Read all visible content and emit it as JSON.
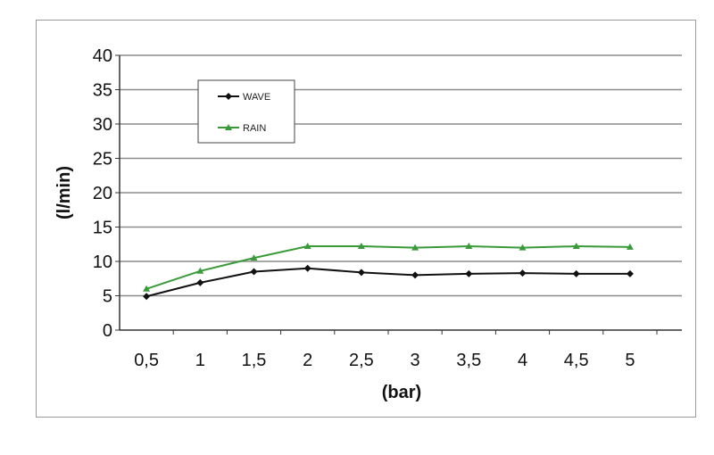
{
  "chart_data": {
    "type": "line",
    "title": "",
    "xlabel": "(bar)",
    "ylabel": "(l/min)",
    "categories": [
      "0,5",
      "1",
      "1,5",
      "2",
      "2,5",
      "3",
      "3,5",
      "4",
      "4,5",
      "5"
    ],
    "ylim": [
      0,
      40
    ],
    "yticks": [
      "0",
      "5",
      "10",
      "15",
      "20",
      "25",
      "30",
      "35",
      "40"
    ],
    "grid": true,
    "legend_placement": "top-left",
    "series": [
      {
        "name": "WAVE",
        "color": "#111111",
        "marker": "diamond",
        "values": [
          4.9,
          6.9,
          8.5,
          9.0,
          8.4,
          8.0,
          8.2,
          8.3,
          8.2,
          8.2
        ]
      },
      {
        "name": "RAIN",
        "color": "#3a9a3a",
        "marker": "triangle",
        "values": [
          6.0,
          8.6,
          10.5,
          12.2,
          12.2,
          12.0,
          12.2,
          12.0,
          12.2,
          12.1
        ]
      }
    ]
  }
}
